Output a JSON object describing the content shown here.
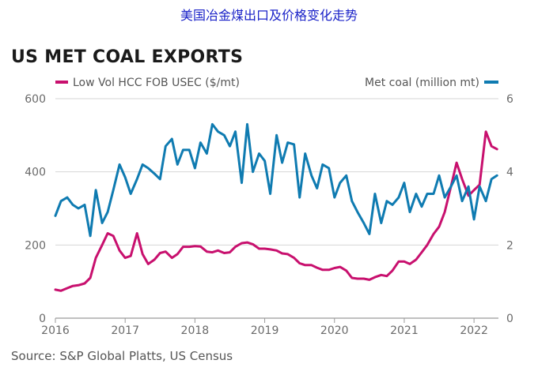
{
  "header": {
    "top_title": "美国冶金煤出口及价格变化走势",
    "source": "Source: S&P Global Platts, US Census"
  },
  "chart_data": {
    "type": "line",
    "title": "US MET COAL EXPORTS",
    "xlabel": "",
    "ylabel": "",
    "x_ticks": [
      "2016",
      "2017",
      "2018",
      "2019",
      "2020",
      "2021",
      "2022"
    ],
    "xlim": [
      2016.0,
      2022.35
    ],
    "ylim_left": [
      0,
      600
    ],
    "ylim_right": [
      0,
      6
    ],
    "y_ticks_left": [
      "0",
      "200",
      "400",
      "600"
    ],
    "y_ticks_right": [
      "0",
      "2",
      "4",
      "6"
    ],
    "legend_position": "top",
    "grid": true,
    "series": [
      {
        "name": "Low Vol HCC FOB USEC ($/mt)",
        "axis": "left",
        "color": "#c8106e",
        "points": [
          [
            2016.0,
            78
          ],
          [
            2016.08,
            75
          ],
          [
            2016.17,
            82
          ],
          [
            2016.25,
            88
          ],
          [
            2016.33,
            90
          ],
          [
            2016.42,
            95
          ],
          [
            2016.5,
            110
          ],
          [
            2016.58,
            165
          ],
          [
            2016.67,
            200
          ],
          [
            2016.75,
            232
          ],
          [
            2016.83,
            225
          ],
          [
            2016.92,
            185
          ],
          [
            2017.0,
            165
          ],
          [
            2017.08,
            170
          ],
          [
            2017.17,
            232
          ],
          [
            2017.25,
            175
          ],
          [
            2017.33,
            148
          ],
          [
            2017.42,
            160
          ],
          [
            2017.5,
            178
          ],
          [
            2017.58,
            182
          ],
          [
            2017.67,
            165
          ],
          [
            2017.75,
            175
          ],
          [
            2017.83,
            195
          ],
          [
            2017.92,
            195
          ],
          [
            2018.0,
            197
          ],
          [
            2018.08,
            196
          ],
          [
            2018.17,
            182
          ],
          [
            2018.25,
            180
          ],
          [
            2018.33,
            185
          ],
          [
            2018.42,
            178
          ],
          [
            2018.5,
            180
          ],
          [
            2018.58,
            195
          ],
          [
            2018.67,
            205
          ],
          [
            2018.75,
            207
          ],
          [
            2018.83,
            202
          ],
          [
            2018.92,
            190
          ],
          [
            2019.0,
            190
          ],
          [
            2019.08,
            188
          ],
          [
            2019.17,
            185
          ],
          [
            2019.25,
            177
          ],
          [
            2019.33,
            175
          ],
          [
            2019.42,
            165
          ],
          [
            2019.5,
            150
          ],
          [
            2019.58,
            145
          ],
          [
            2019.67,
            145
          ],
          [
            2019.75,
            138
          ],
          [
            2019.83,
            132
          ],
          [
            2019.92,
            132
          ],
          [
            2020.0,
            137
          ],
          [
            2020.08,
            140
          ],
          [
            2020.17,
            130
          ],
          [
            2020.25,
            110
          ],
          [
            2020.33,
            108
          ],
          [
            2020.42,
            108
          ],
          [
            2020.5,
            105
          ],
          [
            2020.58,
            112
          ],
          [
            2020.67,
            118
          ],
          [
            2020.75,
            115
          ],
          [
            2020.83,
            130
          ],
          [
            2020.92,
            155
          ],
          [
            2021.0,
            155
          ],
          [
            2021.08,
            148
          ],
          [
            2021.17,
            160
          ],
          [
            2021.25,
            180
          ],
          [
            2021.33,
            200
          ],
          [
            2021.42,
            230
          ],
          [
            2021.5,
            250
          ],
          [
            2021.58,
            290
          ],
          [
            2021.67,
            360
          ],
          [
            2021.75,
            425
          ],
          [
            2021.83,
            380
          ],
          [
            2021.92,
            335
          ],
          [
            2022.0,
            350
          ],
          [
            2022.08,
            365
          ],
          [
            2022.17,
            510
          ],
          [
            2022.25,
            470
          ],
          [
            2022.33,
            462
          ]
        ]
      },
      {
        "name": "Met coal (million mt)",
        "axis": "right",
        "color": "#0f7bb1",
        "points": [
          [
            2016.0,
            2.8
          ],
          [
            2016.08,
            3.2
          ],
          [
            2016.17,
            3.3
          ],
          [
            2016.25,
            3.1
          ],
          [
            2016.33,
            3.0
          ],
          [
            2016.42,
            3.1
          ],
          [
            2016.5,
            2.25
          ],
          [
            2016.58,
            3.5
          ],
          [
            2016.67,
            2.6
          ],
          [
            2016.75,
            2.9
          ],
          [
            2016.83,
            3.5
          ],
          [
            2016.92,
            4.2
          ],
          [
            2017.0,
            3.85
          ],
          [
            2017.08,
            3.4
          ],
          [
            2017.17,
            3.8
          ],
          [
            2017.25,
            4.2
          ],
          [
            2017.33,
            4.1
          ],
          [
            2017.42,
            3.95
          ],
          [
            2017.5,
            3.8
          ],
          [
            2017.58,
            4.7
          ],
          [
            2017.67,
            4.9
          ],
          [
            2017.75,
            4.2
          ],
          [
            2017.83,
            4.6
          ],
          [
            2017.92,
            4.6
          ],
          [
            2018.0,
            4.1
          ],
          [
            2018.08,
            4.8
          ],
          [
            2018.17,
            4.5
          ],
          [
            2018.25,
            5.3
          ],
          [
            2018.33,
            5.1
          ],
          [
            2018.42,
            5.0
          ],
          [
            2018.5,
            4.7
          ],
          [
            2018.58,
            5.1
          ],
          [
            2018.67,
            3.7
          ],
          [
            2018.75,
            5.3
          ],
          [
            2018.83,
            4.0
          ],
          [
            2018.92,
            4.5
          ],
          [
            2019.0,
            4.3
          ],
          [
            2019.08,
            3.4
          ],
          [
            2019.17,
            5.0
          ],
          [
            2019.25,
            4.25
          ],
          [
            2019.33,
            4.8
          ],
          [
            2019.42,
            4.75
          ],
          [
            2019.5,
            3.3
          ],
          [
            2019.58,
            4.5
          ],
          [
            2019.67,
            3.9
          ],
          [
            2019.75,
            3.55
          ],
          [
            2019.83,
            4.2
          ],
          [
            2019.92,
            4.1
          ],
          [
            2020.0,
            3.3
          ],
          [
            2020.08,
            3.7
          ],
          [
            2020.17,
            3.9
          ],
          [
            2020.25,
            3.2
          ],
          [
            2020.33,
            2.9
          ],
          [
            2020.42,
            2.6
          ],
          [
            2020.5,
            2.3
          ],
          [
            2020.58,
            3.4
          ],
          [
            2020.67,
            2.6
          ],
          [
            2020.75,
            3.2
          ],
          [
            2020.83,
            3.1
          ],
          [
            2020.92,
            3.3
          ],
          [
            2021.0,
            3.7
          ],
          [
            2021.08,
            2.9
          ],
          [
            2021.17,
            3.4
          ],
          [
            2021.25,
            3.05
          ],
          [
            2021.33,
            3.4
          ],
          [
            2021.42,
            3.4
          ],
          [
            2021.5,
            3.9
          ],
          [
            2021.58,
            3.3
          ],
          [
            2021.67,
            3.6
          ],
          [
            2021.75,
            3.9
          ],
          [
            2021.83,
            3.2
          ],
          [
            2021.92,
            3.6
          ],
          [
            2022.0,
            2.7
          ],
          [
            2022.08,
            3.6
          ],
          [
            2022.17,
            3.2
          ],
          [
            2022.25,
            3.8
          ],
          [
            2022.33,
            3.9
          ]
        ]
      }
    ]
  }
}
